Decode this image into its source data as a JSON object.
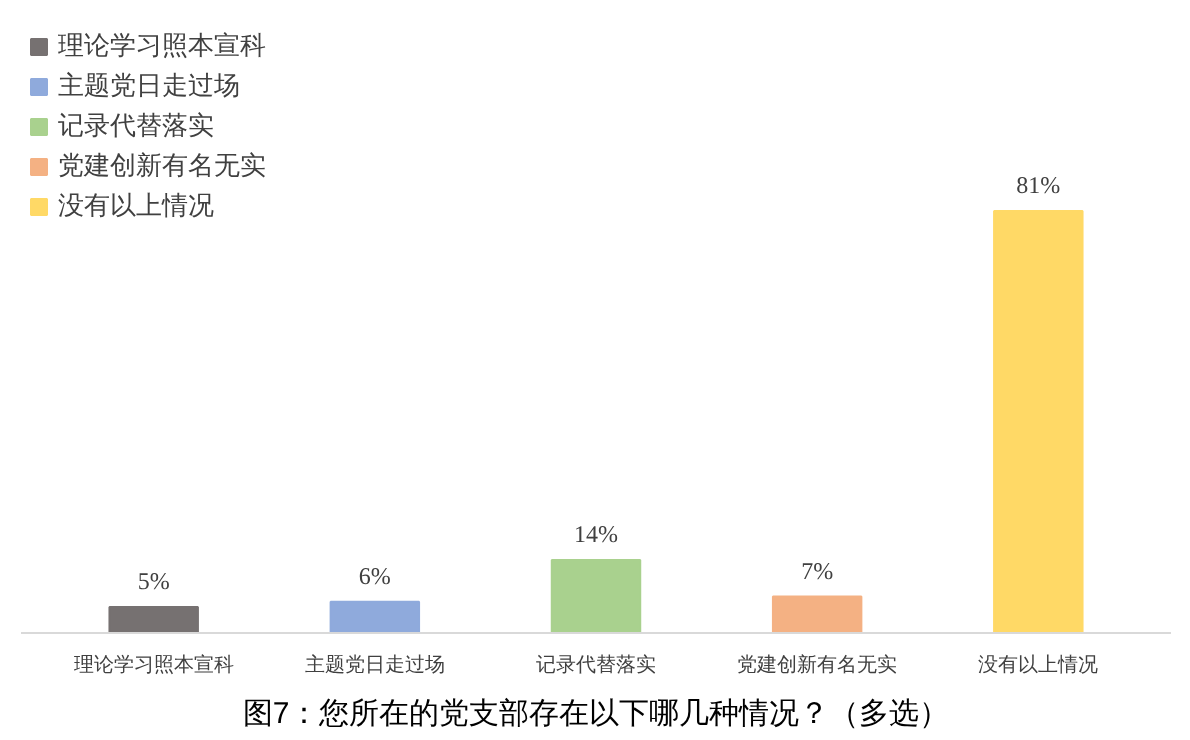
{
  "chart_data": {
    "type": "bar",
    "title": "图7：您所在的党支部存在以下哪几种情况？（多选）",
    "categories": [
      "理论学习照本宣科",
      "主题党日走过场",
      "记录代替落实",
      "党建创新有名无实",
      "没有以上情况"
    ],
    "stacked": true,
    "series": [
      {
        "name": "理论学习照本宣科",
        "color": "#767171",
        "values": [
          5,
          null,
          null,
          null,
          null
        ],
        "value_labels": [
          "5%",
          null,
          null,
          null,
          null
        ]
      },
      {
        "name": "主题党日走过场",
        "color": "#8faadc",
        "values": [
          null,
          6,
          null,
          null,
          null
        ],
        "value_labels": [
          null,
          "6%",
          null,
          null,
          null
        ]
      },
      {
        "name": "记录代替落实",
        "color": "#a9d18e",
        "values": [
          null,
          null,
          14,
          null,
          null
        ],
        "value_labels": [
          null,
          null,
          "14%",
          null,
          null
        ]
      },
      {
        "name": "党建创新有名无实",
        "color": "#f4b183",
        "values": [
          null,
          null,
          null,
          7,
          null
        ],
        "value_labels": [
          null,
          null,
          null,
          "7%",
          null
        ]
      },
      {
        "name": "没有以上情况",
        "color": "#ffd966",
        "values": [
          null,
          null,
          null,
          null,
          81
        ],
        "value_labels": [
          null,
          null,
          null,
          null,
          "81%"
        ]
      }
    ],
    "legend": "top left",
    "grid": false
  }
}
